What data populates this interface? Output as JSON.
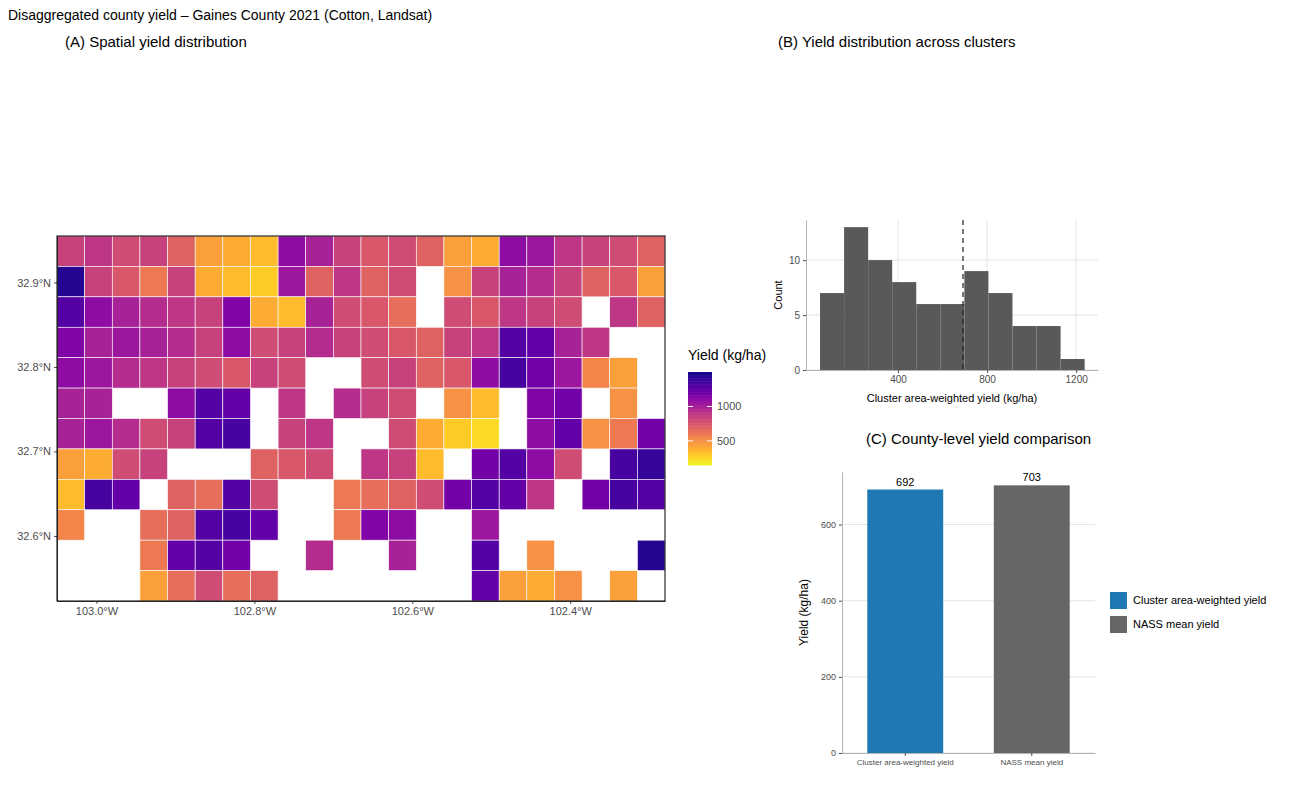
{
  "title": "Disaggregated county yield – Gaines County 2021 (Cotton, Landsat)",
  "chart_data": [
    {
      "type": "heatmap",
      "title": "(A) Spatial yield distribution",
      "x": [
        -103.0325,
        -102.9975,
        -102.9625,
        -102.9275,
        -102.8925,
        -102.8575,
        -102.8225,
        -102.7875,
        -102.7525,
        -102.7175,
        -102.6825,
        -102.6475,
        -102.6125,
        -102.5775,
        -102.5425,
        -102.5075,
        -102.4725,
        -102.4375,
        -102.4025,
        -102.3675,
        -102.3325,
        -102.2975
      ],
      "y": [
        32.937,
        32.901,
        32.865,
        32.829,
        32.793,
        32.757,
        32.721,
        32.685,
        32.649,
        32.613,
        32.577,
        32.541
      ],
      "z": [
        [
          850,
          900,
          800,
          850,
          700,
          450,
          400,
          350,
          1100,
          1000,
          850,
          750,
          800,
          700,
          450,
          400,
          1100,
          1050,
          900,
          850,
          800,
          700
        ],
        [
          1450,
          850,
          750,
          600,
          850,
          400,
          350,
          300,
          1050,
          700,
          900,
          700,
          800,
          null,
          500,
          850,
          1000,
          950,
          850,
          700,
          750,
          450
        ],
        [
          1300,
          1100,
          1000,
          950,
          900,
          850,
          1150,
          400,
          350,
          1000,
          800,
          750,
          650,
          null,
          800,
          750,
          900,
          850,
          800,
          null,
          900,
          700
        ],
        [
          1150,
          1000,
          1050,
          1000,
          950,
          850,
          1100,
          800,
          850,
          950,
          850,
          800,
          750,
          700,
          850,
          900,
          1300,
          1250,
          1000,
          900,
          null,
          null
        ],
        [
          1100,
          1050,
          950,
          900,
          850,
          800,
          750,
          850,
          800,
          null,
          null,
          800,
          850,
          700,
          750,
          1100,
          1350,
          1200,
          1050,
          550,
          450,
          null
        ],
        [
          1000,
          1000,
          null,
          null,
          1100,
          1300,
          1250,
          null,
          900,
          null,
          950,
          850,
          800,
          null,
          500,
          350,
          null,
          1150,
          1200,
          null,
          500,
          null
        ],
        [
          1000,
          1050,
          950,
          800,
          850,
          1300,
          1350,
          null,
          850,
          900,
          null,
          null,
          800,
          400,
          300,
          250,
          null,
          1100,
          1250,
          500,
          600,
          1200
        ],
        [
          450,
          400,
          800,
          850,
          null,
          null,
          null,
          700,
          750,
          800,
          null,
          900,
          850,
          350,
          null,
          1200,
          1300,
          1100,
          800,
          null,
          1350,
          1400
        ],
        [
          350,
          1350,
          1250,
          null,
          700,
          650,
          1300,
          800,
          null,
          null,
          600,
          650,
          700,
          800,
          1200,
          1300,
          1250,
          900,
          null,
          1200,
          1350,
          1300
        ],
        [
          550,
          null,
          null,
          650,
          700,
          1300,
          1350,
          1250,
          null,
          null,
          600,
          1150,
          1100,
          null,
          null,
          1050,
          null,
          null,
          null,
          null,
          null,
          null
        ],
        [
          null,
          null,
          null,
          600,
          1250,
          1300,
          1200,
          null,
          null,
          950,
          null,
          null,
          1000,
          null,
          null,
          1300,
          null,
          500,
          null,
          null,
          null,
          1450
        ],
        [
          null,
          null,
          null,
          450,
          650,
          800,
          650,
          700,
          null,
          null,
          null,
          null,
          null,
          null,
          null,
          1250,
          450,
          400,
          500,
          null,
          450,
          null
        ]
      ],
      "xlim": [
        -103.05,
        -102.28
      ],
      "ylim": [
        32.523,
        32.955
      ],
      "xticks": [
        {
          "value": -103.0,
          "label": "103.0°W"
        },
        {
          "value": -102.8,
          "label": "102.8°W"
        },
        {
          "value": -102.6,
          "label": "102.6°W"
        },
        {
          "value": -102.4,
          "label": "102.4°W"
        }
      ],
      "yticks": [
        {
          "value": 32.6,
          "label": "32.6°N"
        },
        {
          "value": 32.7,
          "label": "32.7°N"
        },
        {
          "value": 32.8,
          "label": "32.8°N"
        },
        {
          "value": 32.9,
          "label": "32.9°N"
        }
      ],
      "colorbar": {
        "title": "Yield (kg/ha)",
        "range": [
          150,
          1500
        ],
        "ticks": [
          500,
          1000
        ]
      },
      "grid": false
    },
    {
      "type": "histogram",
      "title": "(B) Yield distribution across clusters",
      "bins": [
        50,
        158,
        266,
        374,
        482,
        590,
        698,
        806,
        914,
        1022,
        1130,
        1238
      ],
      "counts": [
        7,
        13,
        10,
        8,
        6,
        6,
        9,
        7,
        4,
        4,
        1
      ],
      "color": "#595959",
      "reference_line": 692,
      "x_label": "Cluster area-weighted yield (kg/ha)",
      "y_label": "Count",
      "xlim": [
        -13,
        1298
      ],
      "xticks": [
        400,
        800,
        1200
      ],
      "ylim": [
        0,
        13.65
      ],
      "yticks": [
        0,
        5,
        10
      ],
      "grid": true
    },
    {
      "type": "bar",
      "title": "(C) County-level yield comparison",
      "categories": [
        "Cluster area-weighted yield",
        "NASS mean yield"
      ],
      "values": [
        692,
        703
      ],
      "colors": [
        "#1f77b4",
        "#666666"
      ],
      "y_label": "Yield (kg/ha)",
      "ylim": [
        0,
        738
      ],
      "yticks": [
        0,
        200,
        400,
        600
      ],
      "data_labels": true,
      "legend": "right",
      "grid": true
    }
  ]
}
